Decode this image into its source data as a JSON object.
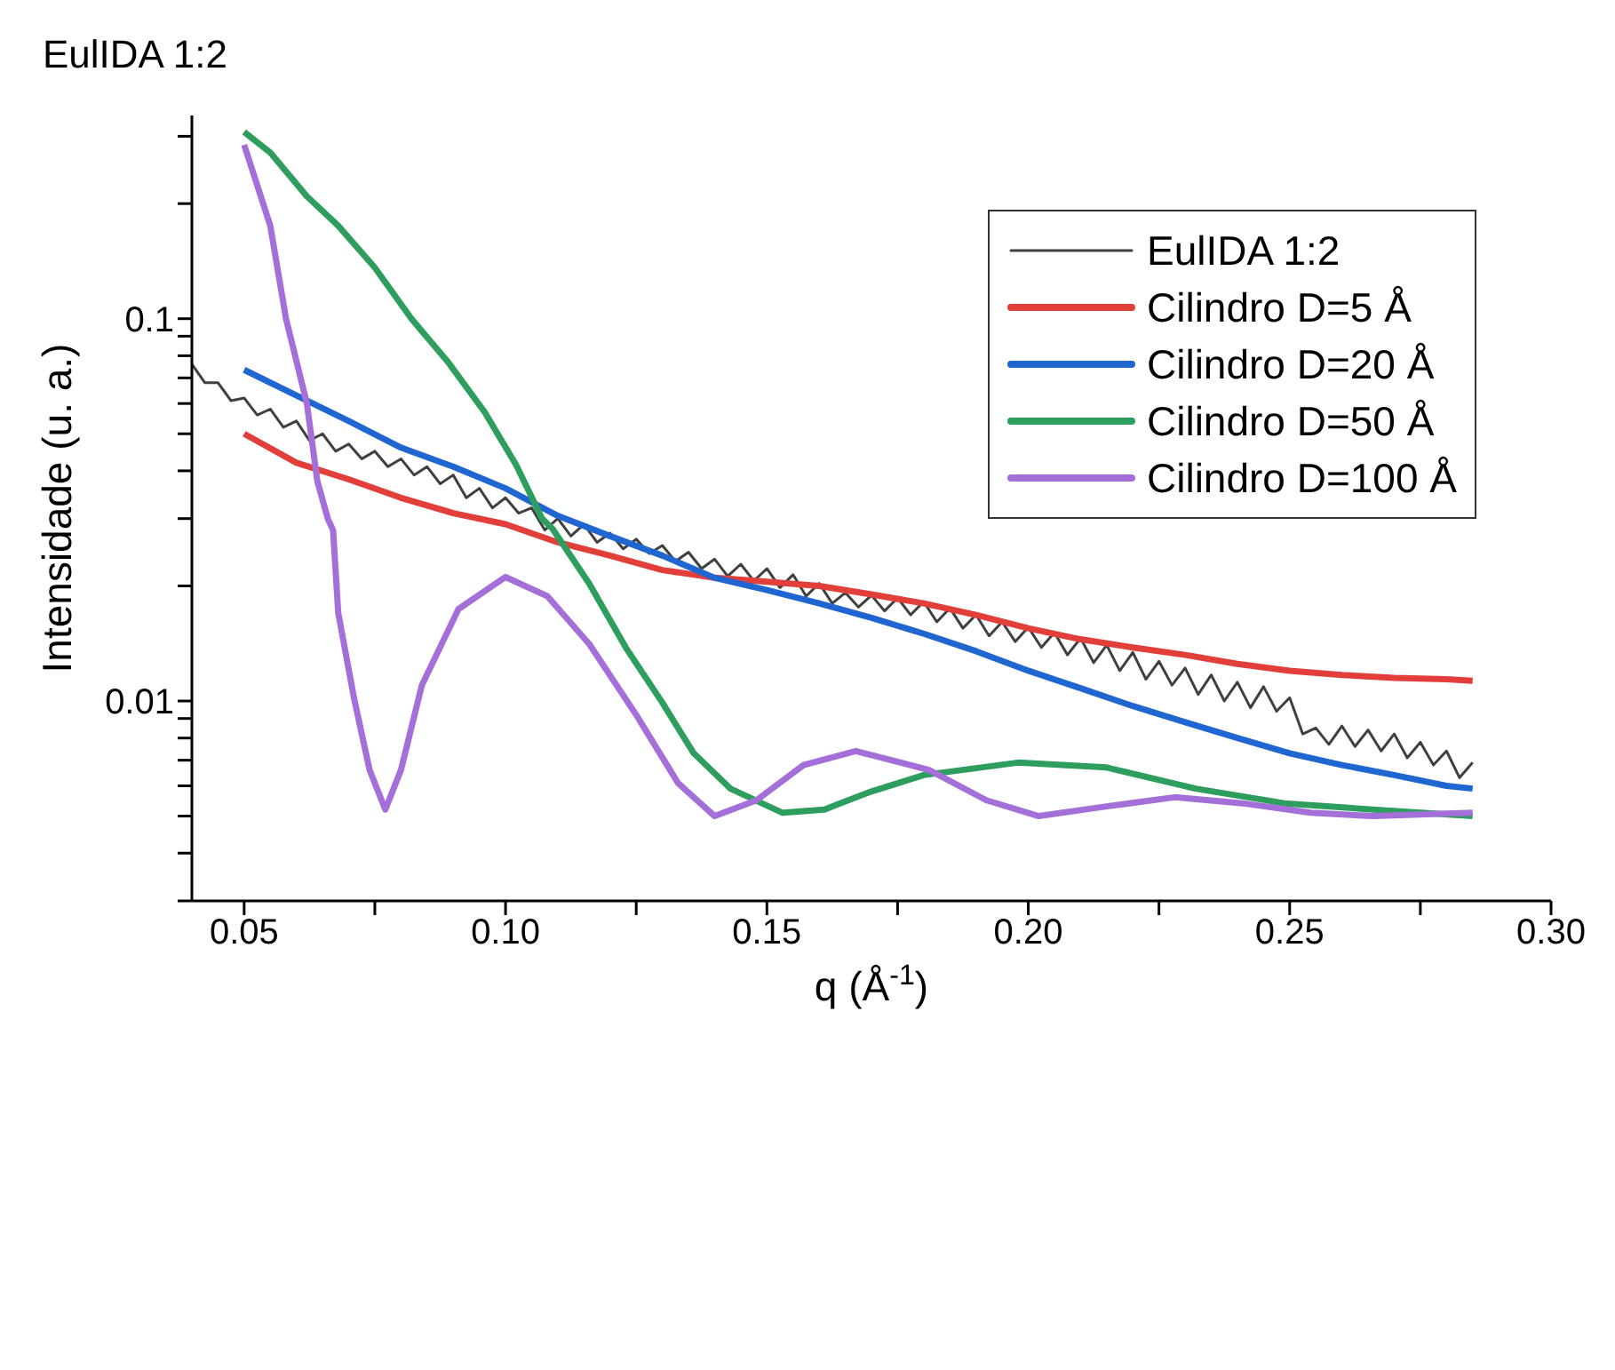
{
  "chart_data": {
    "type": "line",
    "title": "EulIDA 1:2",
    "xlabel": "q (Å$^{-1}$)",
    "ylabel": "Intensidade (u. a.)",
    "log": "y",
    "legend": "top right",
    "marker": "none",
    "line_style": "solid",
    "xlim": [
      0.04,
      0.3
    ],
    "xticks": [
      {
        "value": 0.05,
        "label": "0.05"
      },
      {
        "value": 0.075,
        "label": null
      },
      {
        "value": 0.1,
        "label": "0.10"
      },
      {
        "value": 0.125,
        "label": null
      },
      {
        "value": 0.15,
        "label": "0.15"
      },
      {
        "value": 0.175,
        "label": null
      },
      {
        "value": 0.2,
        "label": "0.20"
      },
      {
        "value": 0.225,
        "label": null
      },
      {
        "value": 0.25,
        "label": "0.25"
      },
      {
        "value": 0.275,
        "label": null
      },
      {
        "value": 0.3,
        "label": "0.30"
      }
    ],
    "ylim": [
      0.003,
      0.34
    ],
    "yticks": [
      {
        "value": 0.003,
        "label": null
      },
      {
        "value": 0.004,
        "label": null
      },
      {
        "value": 0.005,
        "label": null
      },
      {
        "value": 0.006,
        "label": null
      },
      {
        "value": 0.007,
        "label": null
      },
      {
        "value": 0.008,
        "label": null
      },
      {
        "value": 0.009,
        "label": null
      },
      0.01,
      {
        "value": 0.02,
        "label": null
      },
      {
        "value": 0.03,
        "label": null
      },
      {
        "value": 0.04,
        "label": null
      },
      {
        "value": 0.05,
        "label": null
      },
      {
        "value": 0.06,
        "label": null
      },
      {
        "value": 0.07,
        "label": null
      },
      {
        "value": 0.08,
        "label": null
      },
      {
        "value": 0.09,
        "label": null
      },
      0.1,
      {
        "value": 0.2,
        "label": null
      },
      {
        "value": 0.3,
        "label": null
      }
    ],
    "series": [
      {
        "name": "EulIDA 1:2",
        "color": "#404040",
        "x": [
          0.04,
          0.0425,
          0.045,
          0.0475,
          0.05,
          0.0525,
          0.055,
          0.0575,
          0.06,
          0.0625,
          0.065,
          0.0675,
          0.07,
          0.0725,
          0.075,
          0.0775,
          0.08,
          0.0825,
          0.085,
          0.0875,
          0.09,
          0.0925,
          0.095,
          0.0975,
          0.1,
          0.1025,
          0.105,
          0.1075,
          0.11,
          0.1125,
          0.115,
          0.1175,
          0.12,
          0.1225,
          0.125,
          0.1275,
          0.13,
          0.1325,
          0.135,
          0.1375,
          0.14,
          0.1425,
          0.145,
          0.1475,
          0.15,
          0.1525,
          0.155,
          0.1575,
          0.16,
          0.1625,
          0.165,
          0.1675,
          0.17,
          0.1725,
          0.175,
          0.1775,
          0.18,
          0.1825,
          0.185,
          0.1875,
          0.19,
          0.1925,
          0.195,
          0.1975,
          0.2,
          0.2025,
          0.205,
          0.2075,
          0.21,
          0.2125,
          0.215,
          0.2175,
          0.22,
          0.2225,
          0.225,
          0.2275,
          0.23,
          0.2325,
          0.235,
          0.2375,
          0.24,
          0.2425,
          0.245,
          0.2475,
          0.25,
          0.2525,
          0.255,
          0.2575,
          0.26,
          0.2625,
          0.265,
          0.2675,
          0.27,
          0.2725,
          0.275,
          0.2775,
          0.28,
          0.2825,
          0.285
        ],
        "values": [
          0.076,
          0.068,
          0.068,
          0.061,
          0.062,
          0.056,
          0.058,
          0.052,
          0.054,
          0.048,
          0.05,
          0.045,
          0.047,
          0.043,
          0.045,
          0.041,
          0.043,
          0.039,
          0.041,
          0.037,
          0.039,
          0.034,
          0.036,
          0.032,
          0.034,
          0.031,
          0.032,
          0.028,
          0.03,
          0.027,
          0.029,
          0.026,
          0.0275,
          0.025,
          0.0265,
          0.0243,
          0.0255,
          0.0232,
          0.0245,
          0.0222,
          0.0235,
          0.0212,
          0.0228,
          0.0206,
          0.0222,
          0.0198,
          0.0214,
          0.0188,
          0.0203,
          0.018,
          0.0192,
          0.0176,
          0.0189,
          0.0172,
          0.0186,
          0.0168,
          0.0182,
          0.0161,
          0.0175,
          0.0155,
          0.0168,
          0.0148,
          0.0161,
          0.0143,
          0.0156,
          0.0138,
          0.0151,
          0.0132,
          0.0146,
          0.0126,
          0.014,
          0.012,
          0.0134,
          0.0114,
          0.0127,
          0.011,
          0.0122,
          0.0104,
          0.0117,
          0.01,
          0.0112,
          0.0096,
          0.0109,
          0.0094,
          0.0102,
          0.0082,
          0.0085,
          0.0077,
          0.0086,
          0.0076,
          0.0084,
          0.0074,
          0.0082,
          0.0071,
          0.0078,
          0.0068,
          0.0074,
          0.0063,
          0.0069
        ]
      },
      {
        "name": "Cilindro D=5 Å",
        "color": "#e23f3a",
        "x": [
          0.05,
          0.06,
          0.07,
          0.08,
          0.09,
          0.1,
          0.11,
          0.12,
          0.13,
          0.14,
          0.15,
          0.16,
          0.17,
          0.18,
          0.19,
          0.2,
          0.21,
          0.22,
          0.23,
          0.24,
          0.25,
          0.26,
          0.27,
          0.28,
          0.285
        ],
        "values": [
          0.05,
          0.042,
          0.038,
          0.034,
          0.031,
          0.029,
          0.026,
          0.024,
          0.022,
          0.021,
          0.0205,
          0.02,
          0.019,
          0.018,
          0.0168,
          0.0155,
          0.0145,
          0.0138,
          0.0132,
          0.0125,
          0.012,
          0.0117,
          0.0115,
          0.0114,
          0.0113
        ]
      },
      {
        "name": "Cilindro D=20 Å",
        "color": "#1f66d1",
        "x": [
          0.05,
          0.06,
          0.07,
          0.08,
          0.09,
          0.1,
          0.11,
          0.12,
          0.13,
          0.14,
          0.15,
          0.16,
          0.17,
          0.18,
          0.19,
          0.2,
          0.21,
          0.22,
          0.23,
          0.24,
          0.25,
          0.26,
          0.27,
          0.28,
          0.285
        ],
        "values": [
          0.0735,
          0.063,
          0.054,
          0.046,
          0.041,
          0.036,
          0.0305,
          0.027,
          0.024,
          0.021,
          0.0195,
          0.018,
          0.0165,
          0.015,
          0.0135,
          0.012,
          0.0108,
          0.0097,
          0.0088,
          0.008,
          0.0073,
          0.0068,
          0.0064,
          0.006,
          0.0059
        ]
      },
      {
        "name": "Cilindro D=50 Å",
        "color": "#2e9e5e",
        "x": [
          0.05,
          0.055,
          0.062,
          0.068,
          0.075,
          0.082,
          0.089,
          0.096,
          0.102,
          0.107,
          0.109,
          0.116,
          0.123,
          0.13,
          0.136,
          0.143,
          0.153,
          0.161,
          0.164,
          0.17,
          0.18,
          0.198,
          0.215,
          0.232,
          0.249,
          0.266,
          0.285
        ],
        "values": [
          0.308,
          0.272,
          0.209,
          0.175,
          0.136,
          0.1,
          0.077,
          0.057,
          0.0415,
          0.03,
          0.0282,
          0.0203,
          0.0138,
          0.0099,
          0.0073,
          0.0059,
          0.0051,
          0.0052,
          0.0054,
          0.0058,
          0.0064,
          0.0069,
          0.0067,
          0.0059,
          0.0054,
          0.0052,
          0.005
        ]
      },
      {
        "name": "Cilindro D=100 Å",
        "color": "#a46fd8",
        "x": [
          0.05,
          0.055,
          0.058,
          0.062,
          0.064,
          0.066,
          0.067,
          0.068,
          0.071,
          0.074,
          0.077,
          0.08,
          0.084,
          0.091,
          0.1,
          0.108,
          0.116,
          0.125,
          0.133,
          0.14,
          0.148,
          0.157,
          0.167,
          0.181,
          0.192,
          0.202,
          0.215,
          0.228,
          0.241,
          0.254,
          0.266,
          0.285
        ],
        "values": [
          0.285,
          0.175,
          0.1,
          0.06,
          0.0376,
          0.03,
          0.028,
          0.017,
          0.0102,
          0.0066,
          0.0052,
          0.0066,
          0.011,
          0.0174,
          0.0211,
          0.0188,
          0.0141,
          0.0092,
          0.0061,
          0.005,
          0.0055,
          0.0068,
          0.0074,
          0.0066,
          0.0055,
          0.005,
          0.0053,
          0.0056,
          0.0054,
          0.0051,
          0.005,
          0.0051
        ]
      }
    ]
  }
}
